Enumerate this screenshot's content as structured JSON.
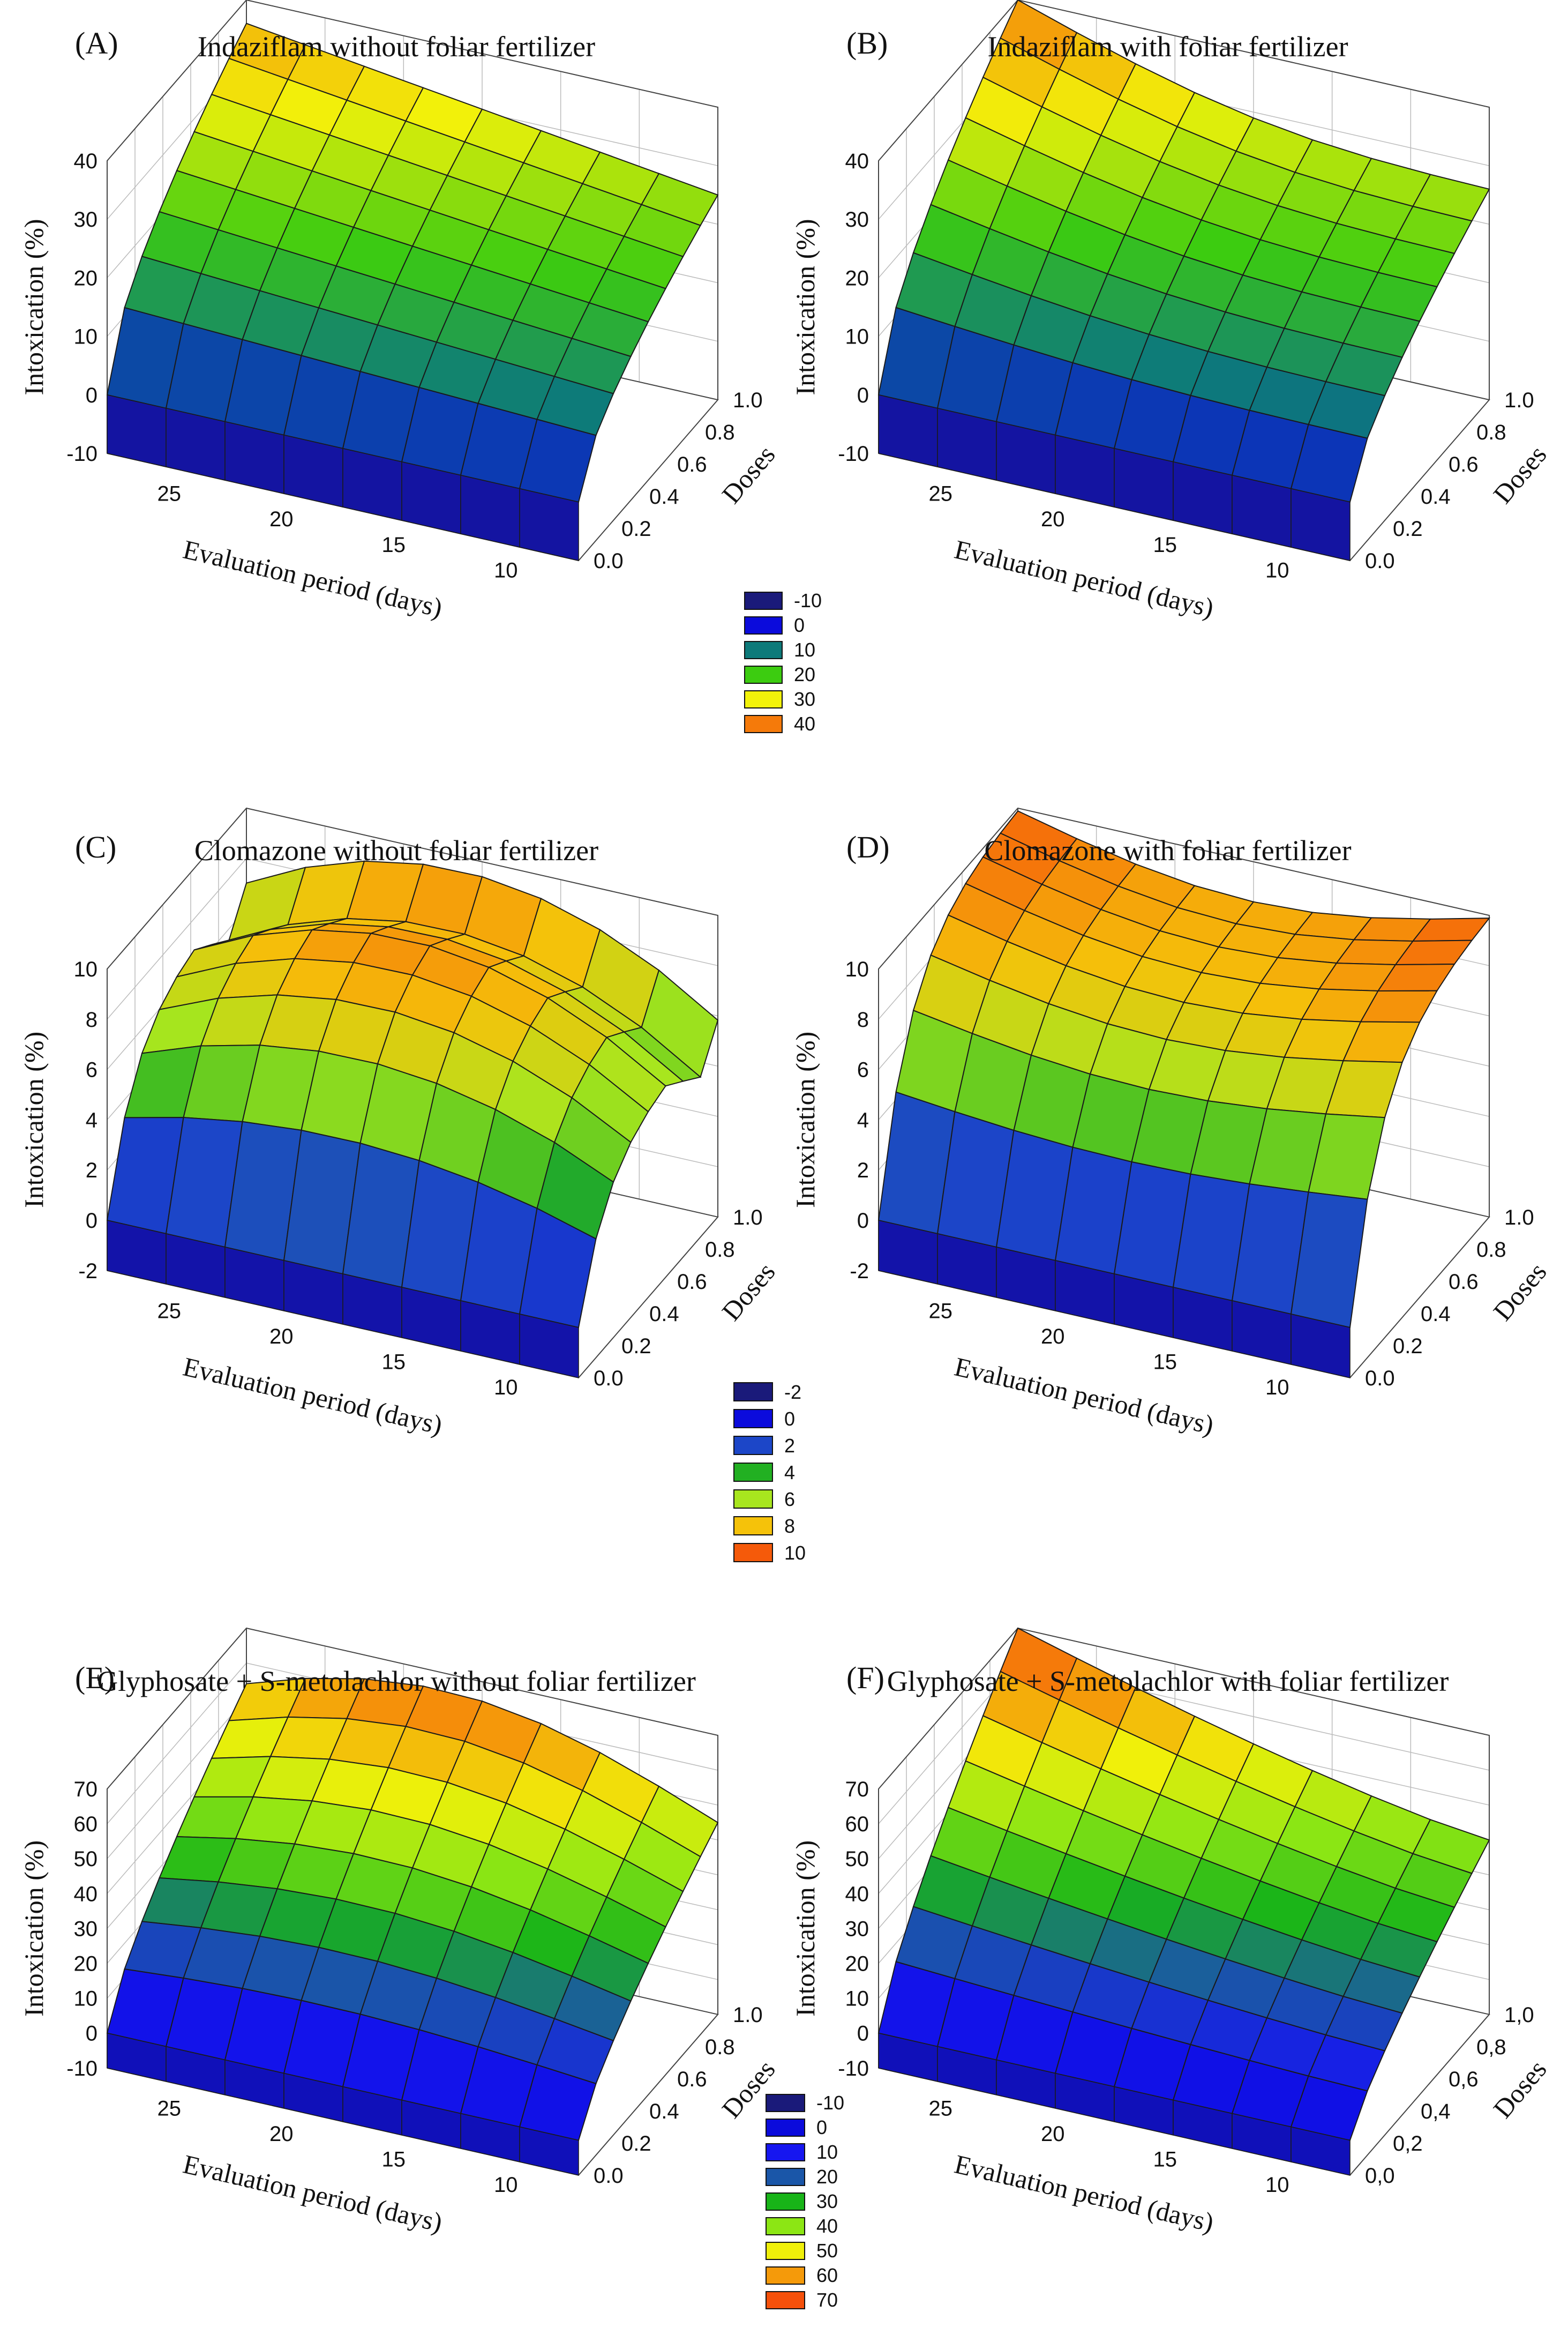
{
  "chart_data": [
    {
      "panel": "(A)",
      "title": "Indaziflam without foliar fertilizer",
      "type": "surface",
      "xlabel": "Evaluation period (days)",
      "ylabel": "Doses",
      "zlabel": "Intoxication (%)",
      "xlim": [
        7,
        28
      ],
      "ylim": [
        0.0,
        1.0
      ],
      "zlim": [
        -10,
        40
      ],
      "xticks": [
        "25",
        "20",
        "15",
        "10"
      ],
      "yticks": [
        "0.0",
        "0.2",
        "0.4",
        "0.6",
        "0.8",
        "1.0"
      ],
      "zticks": [
        "-10",
        "0",
        "10",
        "20",
        "30",
        "40"
      ],
      "legend": [
        "-10",
        "0",
        "10",
        "20",
        "30",
        "40"
      ],
      "colormap": [
        "#1a1a7a",
        "#0b0bdc",
        "#0d7a7a",
        "#3ccc10",
        "#f2f20a",
        "#f57a0a"
      ],
      "surface_description": "At dose 0 intoxication is 0 for all days; rises with dose to about 35 at day 28 and about 25 at day 7 for dose 1.0",
      "peak": {
        "days": 28,
        "dose": 1.0,
        "intoxication": 36
      }
    },
    {
      "panel": "(B)",
      "title": "Indaziflam with foliar fertilizer",
      "type": "surface",
      "xlabel": "Evaluation period (days)",
      "ylabel": "Doses",
      "zlabel": "Intoxication (%)",
      "xlim": [
        7,
        28
      ],
      "ylim": [
        0.0,
        1.0
      ],
      "zlim": [
        -10,
        40
      ],
      "xticks": [
        "25",
        "20",
        "15",
        "10"
      ],
      "yticks": [
        "0.0",
        "0.2",
        "0.4",
        "0.6",
        "0.8",
        "1.0"
      ],
      "zticks": [
        "-10",
        "0",
        "10",
        "20",
        "30",
        "40"
      ],
      "legend": [
        "-10",
        "0",
        "10",
        "20",
        "30",
        "40"
      ],
      "colormap": [
        "#1a1a7a",
        "#0b0bdc",
        "#0d7a7a",
        "#3ccc10",
        "#f2f20a",
        "#f57a0a"
      ],
      "peak": {
        "days": 28,
        "dose": 1.0,
        "intoxication": 40
      }
    },
    {
      "panel": "(C)",
      "title": "Clomazone without foliar fertilizer",
      "type": "surface",
      "xlabel": "Evaluation period (days)",
      "ylabel": "Doses",
      "zlabel": "Intoxication (%)",
      "xlim": [
        7,
        28
      ],
      "ylim": [
        0.0,
        1.0
      ],
      "zlim": [
        -2,
        10
      ],
      "xticks": [
        "25",
        "20",
        "15",
        "10"
      ],
      "yticks": [
        "0.0",
        "0.2",
        "0.4",
        "0.6",
        "0.8",
        "1.0"
      ],
      "zticks": [
        "-2",
        "0",
        "2",
        "4",
        "6",
        "8",
        "10"
      ],
      "legend": [
        "-2",
        "0",
        "2",
        "4",
        "6",
        "8",
        "10"
      ],
      "colormap": [
        "#1a1a7a",
        "#0b0bdc",
        "#1c46c8",
        "#22b022",
        "#a8e61e",
        "#f5c20a",
        "#f55a0a"
      ],
      "peak": {
        "days": 18,
        "dose": 0.6,
        "intoxication": 9.5
      }
    },
    {
      "panel": "(D)",
      "title": "Clomazone with foliar fertilizer",
      "type": "surface",
      "xlabel": "Evaluation period (days)",
      "ylabel": "Doses",
      "zlabel": "Intoxication (%)",
      "xlim": [
        7,
        28
      ],
      "ylim": [
        0.0,
        1.0
      ],
      "zlim": [
        -2,
        10
      ],
      "xticks": [
        "25",
        "20",
        "15",
        "10"
      ],
      "yticks": [
        "0.0",
        "0.2",
        "0.4",
        "0.6",
        "0.8",
        "1.0"
      ],
      "zticks": [
        "-2",
        "0",
        "2",
        "4",
        "6",
        "8",
        "10"
      ],
      "legend": [
        "-2",
        "0",
        "2",
        "4",
        "6",
        "8",
        "10"
      ],
      "colormap": [
        "#1a1a7a",
        "#0b0bdc",
        "#1c46c8",
        "#22b022",
        "#a8e61e",
        "#f5c20a",
        "#f55a0a"
      ],
      "peak": {
        "days": 12,
        "dose": 1.0,
        "intoxication": 10
      }
    },
    {
      "panel": "(E)",
      "title": "Glyphosate + S-metolachlor without foliar fertilizer",
      "type": "surface",
      "xlabel": "Evaluation period (days)",
      "ylabel": "Doses",
      "zlabel": "Intoxication (%)",
      "xlim": [
        7,
        28
      ],
      "ylim": [
        0.0,
        1.0
      ],
      "zlim": [
        -10,
        70
      ],
      "xticks": [
        "25",
        "20",
        "15",
        "10"
      ],
      "yticks": [
        "0.0",
        "0.2",
        "0.4",
        "0.6",
        "0.8",
        "1.0"
      ],
      "zticks": [
        "-10",
        "0",
        "10",
        "20",
        "30",
        "40",
        "50",
        "60",
        "70"
      ],
      "legend": [
        "-10",
        "0",
        "10",
        "20",
        "30",
        "40",
        "50",
        "60",
        "70"
      ],
      "colormap": [
        "#1a1a7a",
        "#0b0bdc",
        "#1616f0",
        "#1a56a8",
        "#18b418",
        "#8ce614",
        "#f0f00a",
        "#f59a0a",
        "#f5500a"
      ],
      "peak": {
        "days": 18,
        "dose": 1.0,
        "intoxication": 65
      }
    },
    {
      "panel": "(F)",
      "title": "Glyphosate + S-metolachlor with foliar fertilizer",
      "type": "surface",
      "xlabel": "Evaluation period (days)",
      "ylabel": "Doses",
      "zlabel": "Intoxication (%)",
      "xlim": [
        7,
        28
      ],
      "ylim": [
        0.0,
        1.0
      ],
      "zlim": [
        -10,
        70
      ],
      "xticks": [
        "25",
        "20",
        "15",
        "10"
      ],
      "yticks": [
        "0,0",
        "0,2",
        "0,4",
        "0,6",
        "0,8",
        "1,0"
      ],
      "zticks": [
        "-10",
        "0",
        "10",
        "20",
        "30",
        "40",
        "50",
        "60",
        "70"
      ],
      "legend": [],
      "colormap": [
        "#1a1a7a",
        "#0b0bdc",
        "#1616f0",
        "#1a56a8",
        "#18b418",
        "#8ce614",
        "#f0f00a",
        "#f59a0a",
        "#f5500a"
      ],
      "peak": {
        "days": 28,
        "dose": 1.0,
        "intoxication": 70
      }
    }
  ]
}
